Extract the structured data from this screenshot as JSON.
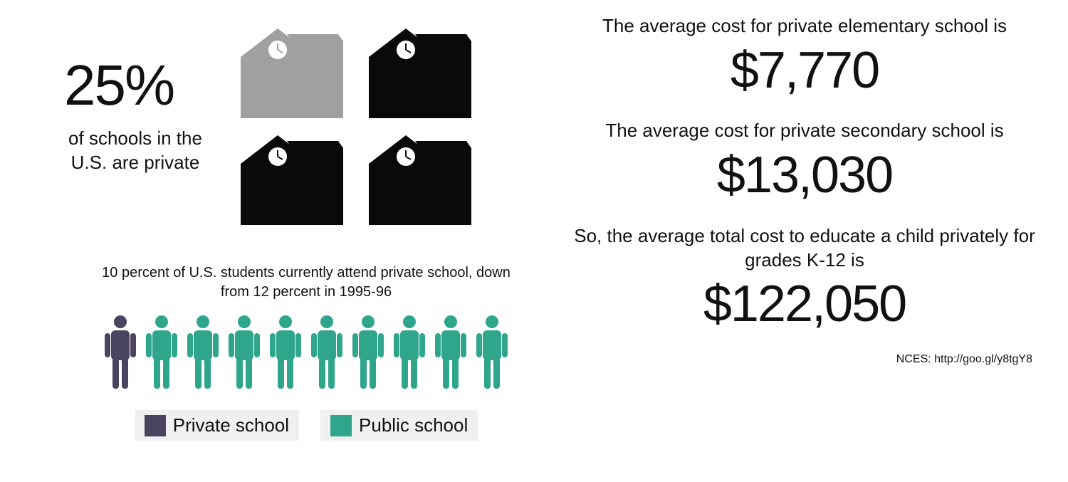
{
  "colors": {
    "private_person": "#4a4461",
    "public_person": "#2fa58b",
    "school_private": "#a0a0a0",
    "school_public": "#0a0a0a",
    "legend_bg": "#f0f0f0",
    "text": "#111111"
  },
  "left": {
    "percent_value": "25%",
    "percent_caption": "of schools in the U.S. are private",
    "schools": {
      "count": 4,
      "private_index": 0
    },
    "students": {
      "caption": "10 percent of U.S. students currently attend private school, down from 12 percent in 1995-96",
      "total_icons": 10,
      "private_icons": 1
    },
    "legend": {
      "private_label": "Private school",
      "public_label": "Public school"
    }
  },
  "right": {
    "elementary": {
      "intro": "The average cost for private elementary school is",
      "value": "$7,770"
    },
    "secondary": {
      "intro": "The average cost for private secondary school is",
      "value": "$13,030"
    },
    "total": {
      "intro": "So, the average total cost to educate a child privately for grades K-12 is",
      "value": "$122,050"
    },
    "source": "NCES: http://goo.gl/y8tgY8"
  }
}
